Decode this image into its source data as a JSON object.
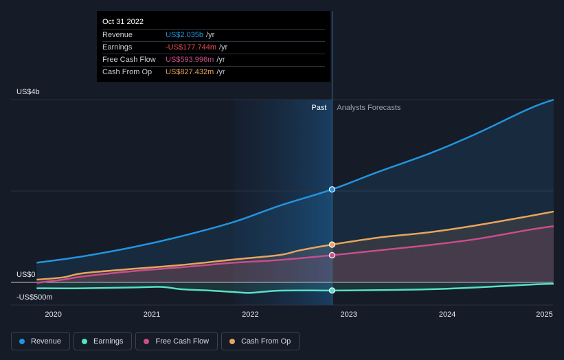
{
  "tooltip": {
    "date": "Oct 31 2022",
    "rows": [
      {
        "label": "Revenue",
        "value": "US$2.035b",
        "unit": "/yr",
        "color": "#2394df"
      },
      {
        "label": "Earnings",
        "value": "-US$177.744m",
        "unit": "/yr",
        "color": "#e64c54"
      },
      {
        "label": "Free Cash Flow",
        "value": "US$593.996m",
        "unit": "/yr",
        "color": "#c94d8c"
      },
      {
        "label": "Cash From Op",
        "value": "US$827.432m",
        "unit": "/yr",
        "color": "#e9a55c"
      }
    ]
  },
  "chart_data": {
    "type": "line",
    "y_tick_labels": [
      "US$4b",
      "US$0",
      "-US$500m"
    ],
    "x_tick_labels": [
      "2020",
      "2021",
      "2022",
      "2023",
      "2024",
      "2025"
    ],
    "region_labels": {
      "past": "Past",
      "forecast": "Analysts Forecasts"
    },
    "ylim": [
      -500,
      4000
    ],
    "divider_x": 2022.83,
    "highlight_x_start": 2021.83,
    "xlim": [
      2019.8,
      2025.08
    ],
    "series": [
      {
        "name": "Revenue",
        "color": "#2394df",
        "fill": true,
        "x": [
          2019.83,
          2020.3,
          2020.83,
          2021.3,
          2021.83,
          2022.3,
          2022.83,
          2023.3,
          2023.83,
          2024.3,
          2024.83,
          2025.08
        ],
        "values": [
          430,
          570,
          780,
          1010,
          1320,
          1680,
          2035,
          2420,
          2830,
          3260,
          3800,
          4000
        ]
      },
      {
        "name": "Cash From Op",
        "color": "#e9a55c",
        "fill": true,
        "x": [
          2019.83,
          2020.1,
          2020.3,
          2020.83,
          2021.3,
          2021.83,
          2022.3,
          2022.5,
          2022.83,
          2023.3,
          2023.83,
          2024.3,
          2024.83,
          2025.08
        ],
        "values": [
          60,
          110,
          200,
          300,
          380,
          500,
          600,
          700,
          827,
          980,
          1100,
          1250,
          1450,
          1550
        ]
      },
      {
        "name": "Free Cash Flow",
        "color": "#c94d8c",
        "fill": true,
        "x": [
          2019.83,
          2020.1,
          2020.3,
          2020.83,
          2021.3,
          2021.83,
          2022.3,
          2022.83,
          2023.3,
          2023.83,
          2024.3,
          2024.83,
          2025.08
        ],
        "values": [
          -10,
          60,
          130,
          250,
          330,
          430,
          490,
          594,
          700,
          820,
          950,
          1150,
          1230
        ]
      },
      {
        "name": "Earnings",
        "color": "#58e0c6",
        "fill": true,
        "x": [
          2019.83,
          2020.3,
          2020.83,
          2021.1,
          2021.3,
          2021.6,
          2021.83,
          2022.0,
          2022.3,
          2022.83,
          2023.3,
          2023.83,
          2024.3,
          2024.83,
          2025.08
        ],
        "values": [
          -130,
          -130,
          -110,
          -100,
          -150,
          -180,
          -210,
          -230,
          -180,
          -178,
          -170,
          -150,
          -110,
          -50,
          -30
        ]
      }
    ],
    "tooltip_x": 2022.83
  },
  "legend": [
    {
      "label": "Revenue",
      "color": "#2394df"
    },
    {
      "label": "Earnings",
      "color": "#58e0c6"
    },
    {
      "label": "Free Cash Flow",
      "color": "#c94d8c"
    },
    {
      "label": "Cash From Op",
      "color": "#e9a55c"
    }
  ]
}
